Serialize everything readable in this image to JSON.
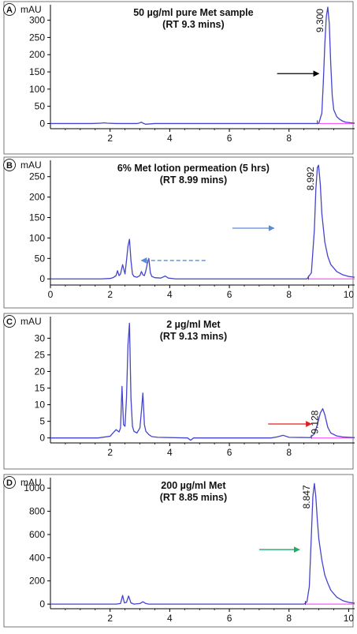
{
  "chart_data": [
    {
      "type": "line",
      "panel_label": "A",
      "title": "50 µg/ml pure Met sample",
      "subtitle": "(RT 9.3 mins)",
      "ylabel": "mAU",
      "xlabel": "",
      "xlim": [
        0,
        10.2
      ],
      "ylim": [
        -15,
        345
      ],
      "xticks": [
        "2",
        "4",
        "6",
        "8"
      ],
      "xtick_values": [
        2,
        4,
        6,
        8
      ],
      "yticks": [
        "0",
        "50",
        "100",
        "150",
        "200",
        "250",
        "300"
      ],
      "ytick_values": [
        0,
        50,
        100,
        150,
        200,
        250,
        300
      ],
      "peak_label": "9.300",
      "peak_x": 9.3,
      "peak_y": 338,
      "arrow": {
        "color": "#000000",
        "style": "solid",
        "x_start": 7.6,
        "x_end": 9.0,
        "y": 145
      },
      "baseline_color": "#ff55ff",
      "baseline_start": 8.95,
      "line_color": "#4444cc",
      "series": [
        {
          "x": [
            0.0,
            0.2,
            1.4,
            1.7,
            1.8,
            1.9,
            2.2,
            2.9,
            3.0,
            3.05,
            3.1,
            3.2,
            3.5,
            8.9,
            9.0,
            9.1,
            9.15,
            9.2,
            9.25,
            9.3,
            9.35,
            9.4,
            9.45,
            9.5,
            9.6,
            9.7,
            9.8,
            9.9,
            10.1,
            10.2
          ],
          "y": [
            0,
            0,
            0,
            1,
            2,
            1,
            0,
            0,
            2,
            4,
            1,
            -2,
            0,
            0,
            1,
            30,
            120,
            230,
            310,
            338,
            290,
            170,
            80,
            40,
            20,
            12,
            7,
            4,
            2,
            1
          ]
        }
      ]
    },
    {
      "type": "line",
      "panel_label": "B",
      "title": "6% Met lotion permeation (5 hrs)",
      "subtitle": "(RT 8.99 mins)",
      "ylabel": "mAU",
      "xlabel": "",
      "xlim": [
        0,
        10.2
      ],
      "ylim": [
        -15,
        290
      ],
      "xticks": [
        "0",
        "2",
        "4",
        "6",
        "8",
        "10"
      ],
      "xtick_values": [
        0,
        2,
        4,
        6,
        8,
        10
      ],
      "yticks": [
        "0",
        "50",
        "100",
        "150",
        "200",
        "250"
      ],
      "ytick_values": [
        0,
        50,
        100,
        150,
        200,
        250
      ],
      "peak_label": "8.992",
      "peak_x": 8.99,
      "peak_y": 278,
      "arrow": {
        "color": "#5b8bd6",
        "style": "solid",
        "x_start": 6.1,
        "x_end": 7.5,
        "y": 124
      },
      "arrow2": {
        "color": "#5b8bd6",
        "style": "dashed",
        "x_start": 5.2,
        "x_end": 3.05,
        "y": 45
      },
      "baseline_color": "#ff55ff",
      "baseline_start": 8.65,
      "line_color": "#4444cc",
      "series": [
        {
          "x": [
            0.0,
            1.7,
            2.0,
            2.1,
            2.2,
            2.25,
            2.3,
            2.35,
            2.42,
            2.5,
            2.55,
            2.6,
            2.65,
            2.7,
            2.75,
            2.8,
            2.9,
            3.0,
            3.05,
            3.1,
            3.15,
            3.2,
            3.25,
            3.3,
            3.35,
            3.4,
            3.5,
            3.7,
            3.85,
            3.95,
            4.2,
            8.6,
            8.75,
            8.85,
            8.9,
            8.95,
            8.99,
            9.05,
            9.1,
            9.2,
            9.3,
            9.4,
            9.6,
            9.8,
            10.0,
            10.2
          ],
          "y": [
            0,
            0,
            1,
            3,
            8,
            20,
            8,
            12,
            35,
            12,
            45,
            80,
            97,
            45,
            12,
            6,
            4,
            8,
            18,
            10,
            8,
            20,
            38,
            50,
            15,
            6,
            3,
            2,
            7,
            2,
            0,
            0,
            15,
            120,
            220,
            272,
            278,
            230,
            160,
            90,
            55,
            35,
            18,
            10,
            6,
            4
          ]
        }
      ]
    },
    {
      "type": "line",
      "panel_label": "C",
      "title": "2 µg/ml Met",
      "subtitle": "(RT 9.13 mins)",
      "ylabel": "mAU",
      "xlabel": "",
      "xlim": [
        0,
        10.2
      ],
      "ylim": [
        -1.5,
        36.5
      ],
      "xticks": [
        "2",
        "4",
        "6",
        "8"
      ],
      "xtick_values": [
        2,
        4,
        6,
        8
      ],
      "yticks": [
        "0",
        "5",
        "10",
        "15",
        "20",
        "25",
        "30"
      ],
      "ytick_values": [
        0,
        5,
        10,
        15,
        20,
        25,
        30
      ],
      "peak_label": "9.128",
      "peak_x": 9.13,
      "peak_y": 8.8,
      "arrow": {
        "color": "#e02020",
        "style": "solid",
        "x_start": 7.3,
        "x_end": 8.75,
        "y": 4.2
      },
      "baseline_color": "#ff55ff",
      "baseline_start": 8.75,
      "line_color": "#4444cc",
      "series": [
        {
          "x": [
            0.0,
            1.6,
            2.0,
            2.1,
            2.2,
            2.3,
            2.35,
            2.4,
            2.45,
            2.5,
            2.55,
            2.6,
            2.65,
            2.7,
            2.75,
            2.8,
            2.9,
            3.0,
            3.05,
            3.1,
            3.15,
            3.2,
            3.3,
            3.4,
            3.6,
            4.6,
            4.7,
            4.8,
            5.5,
            7.4,
            7.6,
            7.8,
            8.0,
            8.7,
            8.85,
            8.95,
            9.05,
            9.13,
            9.2,
            9.3,
            9.4,
            9.6,
            9.8,
            10.2
          ],
          "y": [
            0,
            0,
            0.5,
            1.5,
            2.5,
            1.8,
            3,
            15.5,
            4,
            3.5,
            12,
            28,
            34.5,
            12,
            3.5,
            2,
            1.5,
            3,
            8,
            13.5,
            4,
            2,
            1,
            0.4,
            0.2,
            0,
            -0.7,
            0,
            0,
            0,
            0.3,
            0.8,
            0.2,
            0.1,
            1.2,
            4,
            7.5,
            8.8,
            7,
            3.2,
            1.5,
            0.6,
            0.3,
            0.1
          ]
        }
      ]
    },
    {
      "type": "line",
      "panel_label": "D",
      "title": "200 µg/ml Met",
      "subtitle": "(RT 8.85 mins)",
      "ylabel": "mAU",
      "xlabel": "",
      "xlim": [
        0,
        10.2
      ],
      "ylim": [
        -40,
        1090
      ],
      "xticks": [
        "2",
        "4",
        "6",
        "8",
        "10"
      ],
      "xtick_values": [
        2,
        4,
        6,
        8,
        10
      ],
      "yticks": [
        "0",
        "200",
        "400",
        "600",
        "800",
        "1000"
      ],
      "ytick_values": [
        0,
        200,
        400,
        600,
        800,
        1000
      ],
      "peak_label": "8.847",
      "peak_x": 8.85,
      "peak_y": 1040,
      "arrow": {
        "color": "#22aa66",
        "style": "solid",
        "x_start": 7.0,
        "x_end": 8.35,
        "y": 470
      },
      "baseline_color": "#ff55ff",
      "baseline_start": 8.55,
      "line_color": "#4444cc",
      "series": [
        {
          "x": [
            0.0,
            2.2,
            2.35,
            2.42,
            2.48,
            2.55,
            2.62,
            2.7,
            2.8,
            3.0,
            3.1,
            3.2,
            3.3,
            3.5,
            8.5,
            8.6,
            8.68,
            8.75,
            8.8,
            8.85,
            8.9,
            8.95,
            9.0,
            9.1,
            9.2,
            9.3,
            9.4,
            9.6,
            9.8,
            10.0,
            10.2
          ],
          "y": [
            0,
            0,
            5,
            75,
            10,
            15,
            70,
            10,
            0,
            5,
            20,
            5,
            0,
            0,
            0,
            20,
            150,
            600,
            930,
            1040,
            920,
            720,
            560,
            380,
            250,
            180,
            120,
            60,
            30,
            15,
            8
          ]
        }
      ]
    }
  ]
}
